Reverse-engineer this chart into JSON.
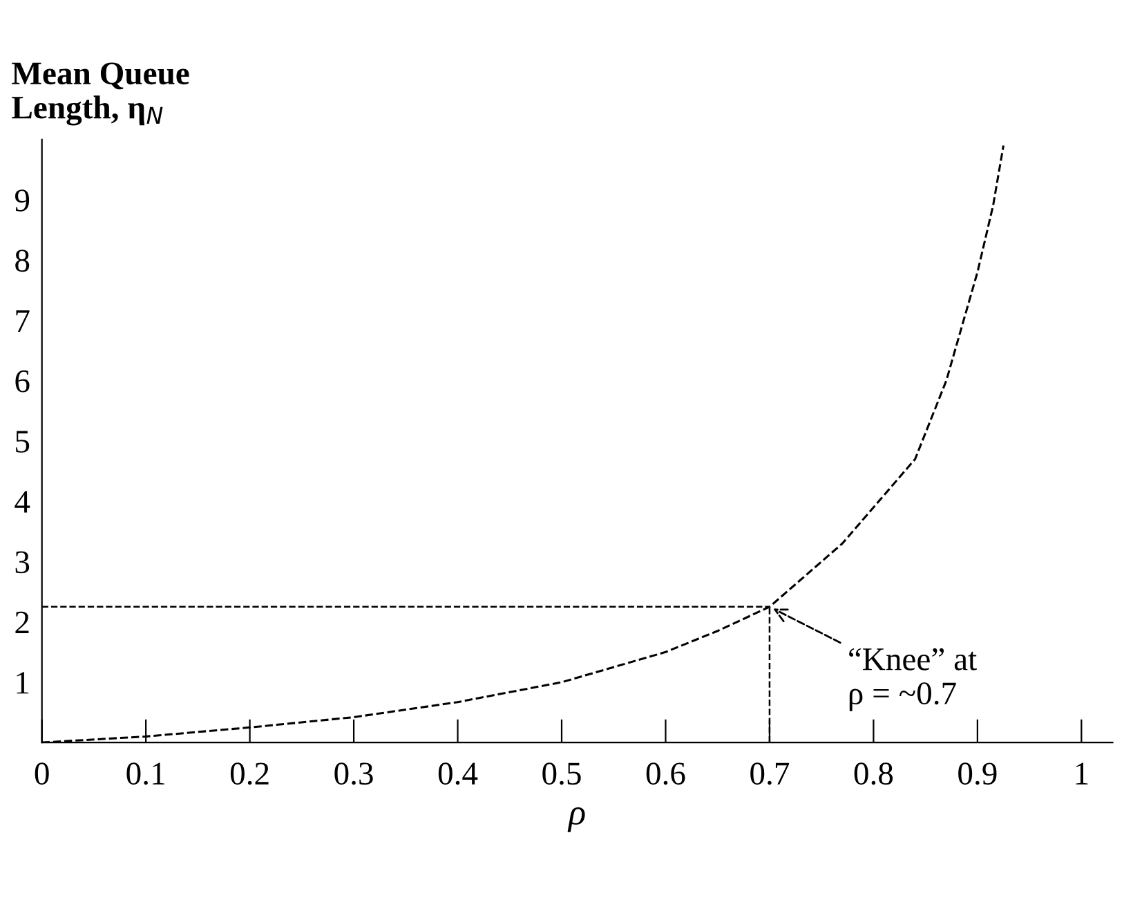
{
  "chart_data": {
    "type": "line",
    "xlabel": "ρ",
    "ylabel": "Mean Queue\nLength, η$_{N}$",
    "x": [
      0,
      0.1,
      0.2,
      0.3,
      0.4,
      0.5,
      0.6,
      0.65,
      0.7,
      0.77,
      0.84,
      0.87,
      0.9,
      0.915,
      0.925
    ],
    "series": [
      {
        "color": "#000000",
        "values": [
          0,
          0.1,
          0.25,
          0.42,
          0.67,
          1.0,
          1.5,
          1.85,
          2.25,
          3.3,
          4.7,
          6.0,
          7.8,
          8.9,
          9.9
        ]
      }
    ],
    "line_style": "dashed",
    "marker": "none",
    "grid": false,
    "legend": false,
    "xlim": [
      0,
      1.03
    ],
    "xticks": [
      0,
      0.1,
      0.2,
      0.3,
      0.4,
      0.5,
      0.6,
      0.7,
      0.8,
      0.9,
      1
    ],
    "ylim": [
      0,
      10
    ],
    "yticks": [
      1,
      2,
      3,
      4,
      5,
      6,
      7,
      8,
      9
    ],
    "ref_lines": [
      {
        "axis": "y",
        "value": 2.25,
        "line_style": "dashed",
        "color": "#000000"
      },
      {
        "axis": "x",
        "value": 0.7,
        "line_style": "dashed",
        "color": "#000000"
      }
    ],
    "annotations": [
      {
        "text": "“Knee” at\nρ = ~0.7",
        "x": 0.7,
        "y": 2.25
      }
    ]
  }
}
